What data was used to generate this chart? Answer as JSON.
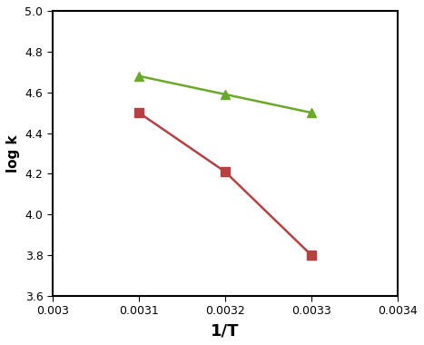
{
  "green_x": [
    0.0031,
    0.0032,
    0.0033
  ],
  "green_y": [
    4.68,
    4.59,
    4.5
  ],
  "red_x": [
    0.0031,
    0.0032,
    0.0033
  ],
  "red_y": [
    4.5,
    4.21,
    3.8
  ],
  "green_color": "#6aaa2a",
  "red_color": "#b84040",
  "xlabel": "1/T",
  "ylabel": "log k",
  "xlim": [
    0.003,
    0.0034
  ],
  "ylim": [
    3.6,
    5.0
  ],
  "xticks": [
    0.003,
    0.0031,
    0.0032,
    0.0033,
    0.0034
  ],
  "yticks": [
    3.6,
    3.8,
    4.0,
    4.2,
    4.4,
    4.6,
    4.8,
    5.0
  ],
  "background_color": "#ffffff",
  "plot_bg_color": "#ffffff"
}
